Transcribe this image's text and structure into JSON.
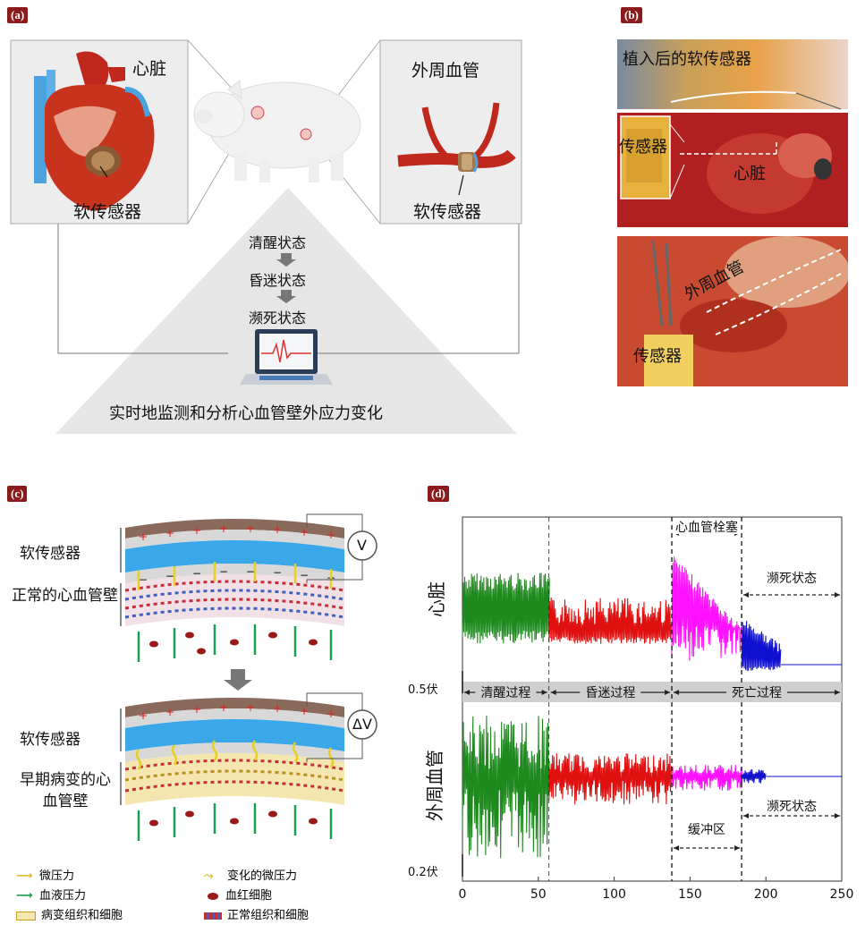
{
  "panels": {
    "a": "(a)",
    "b": "(b)",
    "c": "(c)",
    "d": "(d)"
  },
  "a": {
    "heart_label": "心脏",
    "heart_sensor_label": "软传感器",
    "vessel_label": "外周血管",
    "vessel_sensor_label": "软传感器",
    "states": [
      "清醒状态",
      "昏迷状态",
      "濒死状态"
    ],
    "monitor_caption": "实时地监测和分析心血管壁外应力变化"
  },
  "b": {
    "photo1_label": "植入后的软传感器",
    "photo2_sensor": "传感器",
    "photo2_heart": "心脏",
    "photo3_vessel": "外周血管",
    "photo3_sensor": "传感器"
  },
  "c": {
    "top_sensor": "软传感器",
    "top_wall": "正常的心血管壁",
    "top_meter": "V",
    "bottom_sensor": "软传感器",
    "bottom_wall": "早期病变的心血管壁",
    "bottom_meter": "ΔV",
    "legend": [
      {
        "label": "微压力",
        "icon": "yellow-arrow"
      },
      {
        "label": "变化的微压力",
        "icon": "yellow-wavy-arrow"
      },
      {
        "label": "血液压力",
        "icon": "green-arrow"
      },
      {
        "label": "血红细胞",
        "icon": "red-blood-cell"
      },
      {
        "label": "病变组织和细胞",
        "icon": "yellow-tissue"
      },
      {
        "label": "正常组织和细胞",
        "icon": "blue-red-tissue"
      }
    ]
  },
  "chart_data": {
    "type": "line",
    "xlim": [
      0,
      250
    ],
    "xticks": [
      "0",
      "50",
      "100",
      "150",
      "200",
      "250"
    ],
    "top_ylabel": "心脏",
    "bottom_ylabel": "外周血管",
    "top_scale": "0.5伏",
    "bottom_scale": "0.2伏",
    "phase_boundaries": [
      57,
      138,
      184
    ],
    "phases": [
      {
        "label": "清醒过程",
        "from": 0,
        "to": 57
      },
      {
        "label": "昏迷过程",
        "from": 57,
        "to": 138
      },
      {
        "label": "死亡过程",
        "from": 138,
        "to": 250
      }
    ],
    "annotations": [
      {
        "label": "心血管栓塞",
        "from": 138,
        "to": 184
      },
      {
        "label": "濒死状态",
        "from": 184,
        "to": 250
      },
      {
        "label": "缓冲区",
        "from": 138,
        "to": 184
      },
      {
        "label": "濒死状态",
        "from": 184,
        "to": 250
      }
    ],
    "series_colors": {
      "awake": "#1e8a1e",
      "coma": "#e01010",
      "embolism": "#ff10ff",
      "dying": "#1010d0"
    }
  }
}
